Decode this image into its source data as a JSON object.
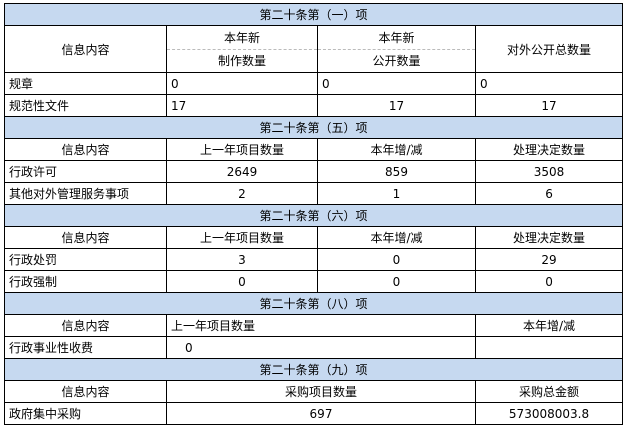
{
  "s1": {
    "title": "第二十条第（一）项",
    "h": [
      "信息内容",
      "本年新",
      "制作数量",
      "本年新",
      "公开数量",
      "对外公开总数量"
    ],
    "rows": [
      [
        "规章",
        "0",
        "0",
        "0"
      ],
      [
        "规范性文件",
        "17",
        "17",
        "17"
      ]
    ]
  },
  "s5": {
    "title": "第二十条第（五）项",
    "h": [
      "信息内容",
      "上一年项目数量",
      "本年增/减",
      "处理决定数量"
    ],
    "rows": [
      [
        "行政许可",
        "2649",
        "859",
        "3508"
      ],
      [
        "其他对外管理服务事项",
        "2",
        "1",
        "6"
      ]
    ]
  },
  "s6": {
    "title": "第二十条第（六）项",
    "h": [
      "信息内容",
      "上一年项目数量",
      "本年增/减",
      "处理决定数量"
    ],
    "rows": [
      [
        "行政处罚",
        "3",
        "0",
        "29"
      ],
      [
        "行政强制",
        "0",
        "0",
        "0"
      ]
    ]
  },
  "s8": {
    "title": "第二十条第（八）项",
    "h": [
      "信息内容",
      "上一年项目数量",
      "本年增/减"
    ],
    "rows": [
      [
        "行政事业性收费",
        "0",
        ""
      ]
    ]
  },
  "s9": {
    "title": "第二十条第（九）项",
    "h": [
      "信息内容",
      "采购项目数量",
      "采购总金额"
    ],
    "rows": [
      [
        "政府集中采购",
        "697",
        "573008003.8"
      ]
    ]
  }
}
